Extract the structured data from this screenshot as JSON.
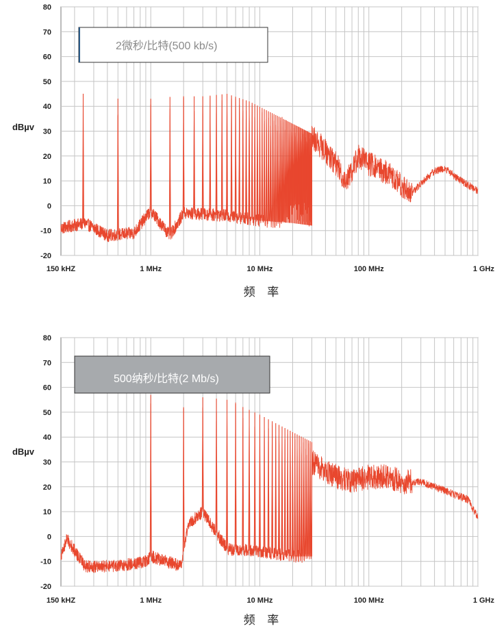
{
  "chart_data": [
    {
      "type": "line",
      "title": "",
      "annotation": "2微秒/比特(500 kb/s)",
      "ylabel": "dBµv",
      "xlabel": "频 率",
      "x_scale": "log",
      "xlim_hz": [
        150000,
        1000000000
      ],
      "ylim": [
        -20,
        80
      ],
      "y_ticks": [
        "80",
        "70",
        "60",
        "50",
        "40",
        "30",
        "20",
        "10",
        "0",
        "-10",
        "-20"
      ],
      "x_ticks": [
        {
          "label": "150 kHZ",
          "value_hz": 150000
        },
        {
          "label": "1 MHz",
          "value_hz": 1000000
        },
        {
          "label": "10 MHz",
          "value_hz": 10000000
        },
        {
          "label": "100 MHz",
          "value_hz": 100000000
        },
        {
          "label": "1 GHz",
          "value_hz": 1000000000
        }
      ],
      "grid": true,
      "series_color": "#e8472e",
      "box_fill": "#ffffff",
      "box_text_color": "#8a8a8a",
      "bit_rate_bps": 500000,
      "spur_spacing_hz": 500000,
      "spur_end_hz": 30000000,
      "envelope": {
        "freq_hz": [
          160000,
          240000,
          400000,
          600000,
          1000000,
          1700000,
          3000000,
          5000000,
          8000000,
          12000000,
          20000000,
          30000000
        ],
        "peak_db": [
          10,
          45,
          42,
          44,
          43,
          44,
          44,
          45,
          42,
          38,
          33,
          29
        ]
      },
      "noise_floor": {
        "freq_hz": [
          150000,
          250000,
          400000,
          700000,
          1000000,
          1500000,
          2000000,
          5000000,
          10000000,
          20000000,
          30000000
        ],
        "db": [
          -9,
          -7,
          -12,
          -11,
          -2,
          -12,
          -3,
          -4,
          -6,
          -7,
          -8
        ]
      },
      "broadband": {
        "freq_hz": [
          30000000,
          40000000,
          50000000,
          60000000,
          70000000,
          80000000,
          100000000,
          150000000,
          200000000,
          250000000,
          300000000,
          400000000,
          500000000,
          700000000,
          1000000000
        ],
        "db": [
          28,
          22,
          17,
          10,
          14,
          20,
          17,
          13,
          8,
          5,
          9,
          14,
          15,
          10,
          6
        ]
      }
    },
    {
      "type": "line",
      "title": "",
      "annotation": "500纳秒/比特(2 Mb/s)",
      "ylabel": "dBµv",
      "xlabel": "频 率",
      "x_scale": "log",
      "xlim_hz": [
        150000,
        1000000000
      ],
      "ylim": [
        -20,
        80
      ],
      "y_ticks": [
        "80",
        "70",
        "60",
        "50",
        "40",
        "30",
        "20",
        "10",
        "0",
        "-10",
        "-20"
      ],
      "x_ticks": [
        {
          "label": "150 kHZ",
          "value_hz": 150000
        },
        {
          "label": "1 MHz",
          "value_hz": 1000000
        },
        {
          "label": "10 MHz",
          "value_hz": 10000000
        },
        {
          "label": "100 MHz",
          "value_hz": 100000000
        },
        {
          "label": "1 GHz",
          "value_hz": 1000000000
        }
      ],
      "grid": true,
      "series_color": "#e8472e",
      "box_fill": "#a7aaad",
      "box_text_color": "#ffffff",
      "bit_rate_bps": 2000000,
      "spur_spacing_hz": 1000000,
      "spur_end_hz": 30000000,
      "envelope": {
        "freq_hz": [
          1000000,
          2000000,
          3000000,
          5000000,
          10000000,
          20000000,
          30000000
        ],
        "peak_db": [
          57,
          52,
          56,
          55,
          49,
          42,
          38
        ]
      },
      "noise_floor": {
        "freq_hz": [
          150000,
          170000,
          250000,
          500000,
          900000,
          1000000,
          1900000,
          2200000,
          3000000,
          5000000,
          10000000,
          20000000,
          30000000
        ],
        "db": [
          -8,
          -1,
          -12,
          -12,
          -10,
          -8,
          -12,
          5,
          10,
          -5,
          -6,
          -8,
          -8
        ]
      },
      "broadband": {
        "freq_hz": [
          30000000,
          50000000,
          70000000,
          100000000,
          150000000,
          200000000,
          300000000,
          400000000,
          600000000,
          800000000,
          1000000000
        ],
        "db": [
          30,
          24,
          22,
          24,
          24,
          22,
          22,
          20,
          17,
          15,
          8
        ]
      }
    }
  ]
}
